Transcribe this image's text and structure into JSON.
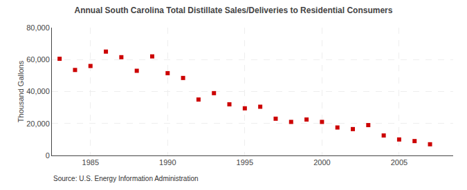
{
  "chart_data": {
    "type": "scatter",
    "title": "Annual South Carolina Total Distillate Sales/Deliveries to Residential Consumers",
    "ylabel": "Thousand Gallons",
    "annotations": [
      "Source: U.S. Energy Information Administration"
    ],
    "x": [
      1983,
      1984,
      1985,
      1986,
      1987,
      1988,
      1989,
      1990,
      1991,
      1992,
      1993,
      1994,
      1995,
      1996,
      1997,
      1998,
      1999,
      2000,
      2001,
      2002,
      2003,
      2004,
      2005,
      2006,
      2007
    ],
    "values": [
      60500,
      53500,
      56000,
      65000,
      61500,
      53000,
      62000,
      51500,
      48500,
      35000,
      39000,
      32000,
      29500,
      30500,
      23000,
      21000,
      22500,
      21000,
      17500,
      16500,
      19000,
      12500,
      10000,
      9000,
      7000
    ],
    "color": "#cc0000",
    "marker": "square",
    "xlim": [
      1982.5,
      2008.5
    ],
    "xticks": [
      1985,
      1990,
      1995,
      2000,
      2005
    ],
    "ylim": [
      0,
      80000
    ],
    "yticks": [
      0,
      {
        "value": 20000,
        "label": "20,000"
      },
      {
        "value": 40000,
        "label": "40,000"
      },
      {
        "value": 60000,
        "label": "60,000"
      },
      {
        "value": 80000,
        "label": "80,000"
      }
    ],
    "grid": true
  }
}
